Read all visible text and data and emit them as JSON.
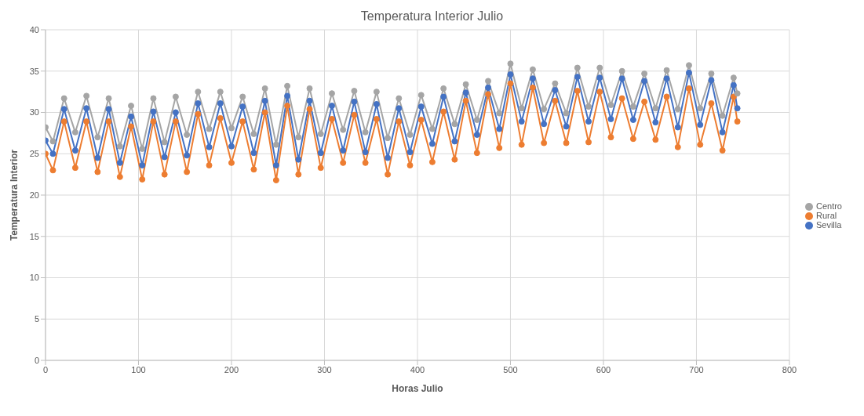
{
  "chart_data": {
    "type": "line",
    "title": "Temperatura Interior Julio",
    "xlabel": "Horas Julio",
    "ylabel": "Temperatura Interior",
    "x": [
      0,
      8,
      20,
      32,
      44,
      56,
      68,
      80,
      92,
      104,
      116,
      128,
      140,
      152,
      164,
      176,
      188,
      200,
      212,
      224,
      236,
      248,
      260,
      272,
      284,
      296,
      308,
      320,
      332,
      344,
      356,
      368,
      380,
      392,
      404,
      416,
      428,
      440,
      452,
      464,
      476,
      488,
      500,
      512,
      524,
      536,
      548,
      560,
      572,
      584,
      596,
      608,
      620,
      632,
      644,
      656,
      668,
      680,
      692,
      704,
      716,
      728,
      740,
      744
    ],
    "series": [
      {
        "name": "Sevilla",
        "color": "#4472c4",
        "values": [
          26.6,
          25.0,
          30.4,
          25.4,
          30.5,
          24.5,
          30.4,
          23.9,
          29.5,
          23.6,
          30.1,
          24.6,
          30.0,
          24.8,
          31.1,
          25.8,
          31.1,
          25.9,
          30.7,
          25.1,
          31.4,
          23.6,
          32.0,
          24.3,
          31.4,
          25.1,
          30.8,
          25.4,
          31.3,
          25.2,
          31.0,
          24.5,
          30.5,
          25.2,
          30.7,
          26.2,
          31.9,
          26.5,
          32.4,
          27.3,
          33.0,
          28.0,
          34.6,
          28.9,
          34.1,
          28.6,
          32.7,
          28.3,
          34.3,
          28.9,
          34.2,
          29.2,
          34.1,
          29.1,
          33.8,
          28.8,
          34.1,
          28.2,
          34.8,
          28.5,
          33.9,
          27.6,
          33.3,
          30.5
        ]
      },
      {
        "name": "Rural",
        "color": "#ed7d31",
        "values": [
          25.0,
          23.0,
          28.9,
          23.3,
          28.9,
          22.8,
          28.9,
          22.2,
          28.3,
          21.9,
          28.9,
          22.5,
          28.9,
          22.8,
          29.8,
          23.6,
          29.3,
          23.9,
          28.9,
          23.1,
          30.0,
          21.8,
          30.8,
          22.5,
          30.4,
          23.3,
          29.2,
          23.9,
          29.7,
          23.9,
          29.2,
          22.5,
          28.9,
          23.6,
          29.1,
          24.0,
          30.1,
          24.3,
          31.4,
          25.1,
          32.2,
          25.7,
          33.5,
          26.1,
          33.0,
          26.3,
          31.4,
          26.3,
          32.6,
          26.4,
          32.5,
          27.0,
          31.7,
          26.8,
          31.3,
          26.7,
          31.9,
          25.8,
          32.9,
          26.1,
          31.1,
          25.4,
          31.9,
          28.9
        ]
      },
      {
        "name": "Centro",
        "color": "#a5a5a5",
        "values": [
          28.2,
          26.5,
          31.7,
          27.6,
          32.0,
          27.0,
          31.7,
          25.9,
          30.8,
          25.6,
          31.7,
          26.4,
          31.9,
          27.3,
          32.5,
          28.0,
          32.5,
          28.1,
          31.9,
          27.4,
          32.9,
          26.1,
          33.2,
          27.0,
          32.9,
          27.4,
          32.3,
          27.9,
          32.6,
          27.6,
          32.5,
          26.9,
          31.7,
          27.3,
          32.1,
          28.0,
          32.9,
          28.6,
          33.4,
          29.1,
          33.8,
          29.9,
          35.9,
          30.5,
          35.2,
          30.4,
          33.5,
          29.9,
          35.4,
          30.7,
          35.4,
          30.9,
          35.0,
          30.7,
          34.7,
          30.5,
          35.1,
          30.4,
          35.7,
          30.5,
          34.7,
          29.6,
          34.2,
          32.3
        ]
      }
    ],
    "xlim": [
      0,
      800
    ],
    "xticks": [
      0,
      100,
      200,
      300,
      400,
      500,
      600,
      700,
      800
    ],
    "ylim": [
      0,
      40
    ],
    "yticks": [
      0,
      5,
      10,
      15,
      20,
      25,
      30,
      35,
      40
    ],
    "grid": true,
    "legend": "right",
    "marker": "circle",
    "line_style": "solid"
  }
}
